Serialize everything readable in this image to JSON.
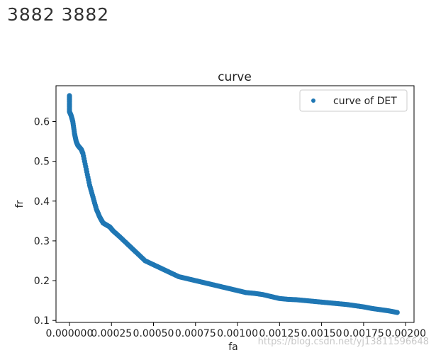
{
  "header": {
    "text": "3882  3882"
  },
  "watermark": "https://blog.csdn.net/yj13811596648",
  "chart_data": {
    "type": "scatter",
    "title": "curve",
    "xlabel": "fa",
    "ylabel": "fr",
    "xlim": [
      -8e-05,
      0.00205
    ],
    "ylim": [
      0.095,
      0.69
    ],
    "x_ticks": [
      0,
      0.00025,
      0.0005,
      0.00075,
      0.001,
      0.00125,
      0.0015,
      0.00175,
      0.002
    ],
    "x_tick_labels": [
      "0.000000",
      "0.00025",
      "0.00050",
      "0.00075",
      "0.00100",
      "0.00125",
      "0.00150",
      "0.00175",
      "0.00200"
    ],
    "y_ticks": [
      0.1,
      0.2,
      0.3,
      0.4,
      0.5,
      0.6
    ],
    "y_tick_labels": [
      "0.1",
      "0.2",
      "0.3",
      "0.4",
      "0.5",
      "0.6"
    ],
    "legend": {
      "position": "top-right",
      "entries": [
        "curve of DET"
      ]
    },
    "series": [
      {
        "name": "curve of DET",
        "color": "#1f77b4",
        "x": [
          0.0,
          0.0,
          0.0,
          1e-05,
          2e-05,
          3e-05,
          4e-05,
          5e-05,
          6e-05,
          7e-05,
          8e-05,
          0.0001,
          0.00012,
          0.00014,
          0.00016,
          0.00018,
          0.0002,
          0.00022,
          0.00024,
          0.00026,
          0.0003,
          0.00035,
          0.0004,
          0.00045,
          0.0005,
          0.00055,
          0.0006,
          0.00065,
          0.0007,
          0.00075,
          0.0008,
          0.00085,
          0.0009,
          0.00095,
          0.001,
          0.00105,
          0.0011,
          0.00115,
          0.0012,
          0.00125,
          0.0013,
          0.00135,
          0.0014,
          0.00145,
          0.0015,
          0.00155,
          0.0016,
          0.00165,
          0.0017,
          0.00175,
          0.0018,
          0.00185,
          0.0019,
          0.00195
        ],
        "y": [
          0.665,
          0.65,
          0.625,
          0.615,
          0.6,
          0.57,
          0.55,
          0.54,
          0.535,
          0.53,
          0.52,
          0.48,
          0.44,
          0.41,
          0.38,
          0.36,
          0.345,
          0.34,
          0.335,
          0.325,
          0.31,
          0.29,
          0.27,
          0.25,
          0.24,
          0.23,
          0.22,
          0.21,
          0.205,
          0.2,
          0.195,
          0.19,
          0.185,
          0.18,
          0.175,
          0.17,
          0.168,
          0.165,
          0.16,
          0.155,
          0.153,
          0.152,
          0.15,
          0.148,
          0.146,
          0.144,
          0.142,
          0.14,
          0.137,
          0.134,
          0.13,
          0.127,
          0.124,
          0.12
        ]
      }
    ]
  }
}
